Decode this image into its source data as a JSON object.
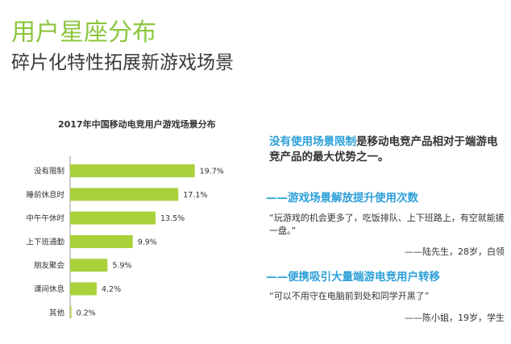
{
  "header": {
    "title": "用户星座分布",
    "subtitle": "碎片化特性拓展新游戏场景"
  },
  "colors": {
    "accent_green": "#8cc63f",
    "bar_green": "#a8d13a",
    "accent_blue": "#2a9fd8",
    "text_dark": "#333333"
  },
  "chart_data": {
    "type": "bar",
    "orientation": "horizontal",
    "title": "2017年中国移动电竞用户游戏场景分布",
    "categories": [
      "没有限制",
      "睡前休息时",
      "中午午休时",
      "上下班通勤",
      "朋友聚会",
      "课间休息",
      "其他"
    ],
    "values": [
      19.7,
      17.1,
      13.5,
      9.9,
      5.9,
      4.2,
      0.2
    ],
    "value_labels": [
      "19.7%",
      "17.1%",
      "13.5%",
      "9.9%",
      "5.9%",
      "4.2%",
      "0.2%"
    ],
    "xlim": [
      0,
      20
    ],
    "grid": false,
    "legend": "none"
  },
  "panel": {
    "intro_highlight": "没有使用场景限制",
    "intro_rest": "是移动电竞产品相对于端游电竞产品的最大优势之一。",
    "sections": [
      {
        "heading": "——游戏场景解放提升使用次数",
        "quote": "“玩游戏的机会更多了，吃饭排队、上下班路上，有空就能搓一盘。”",
        "attribution": "——陆先生，28岁，白领"
      },
      {
        "heading": "——便携吸引大量端游电竞用户转移",
        "quote": "“可以不用守在电脑前到处和同学开黑了”",
        "attribution": "——陈小姐，19岁，学生"
      }
    ]
  }
}
